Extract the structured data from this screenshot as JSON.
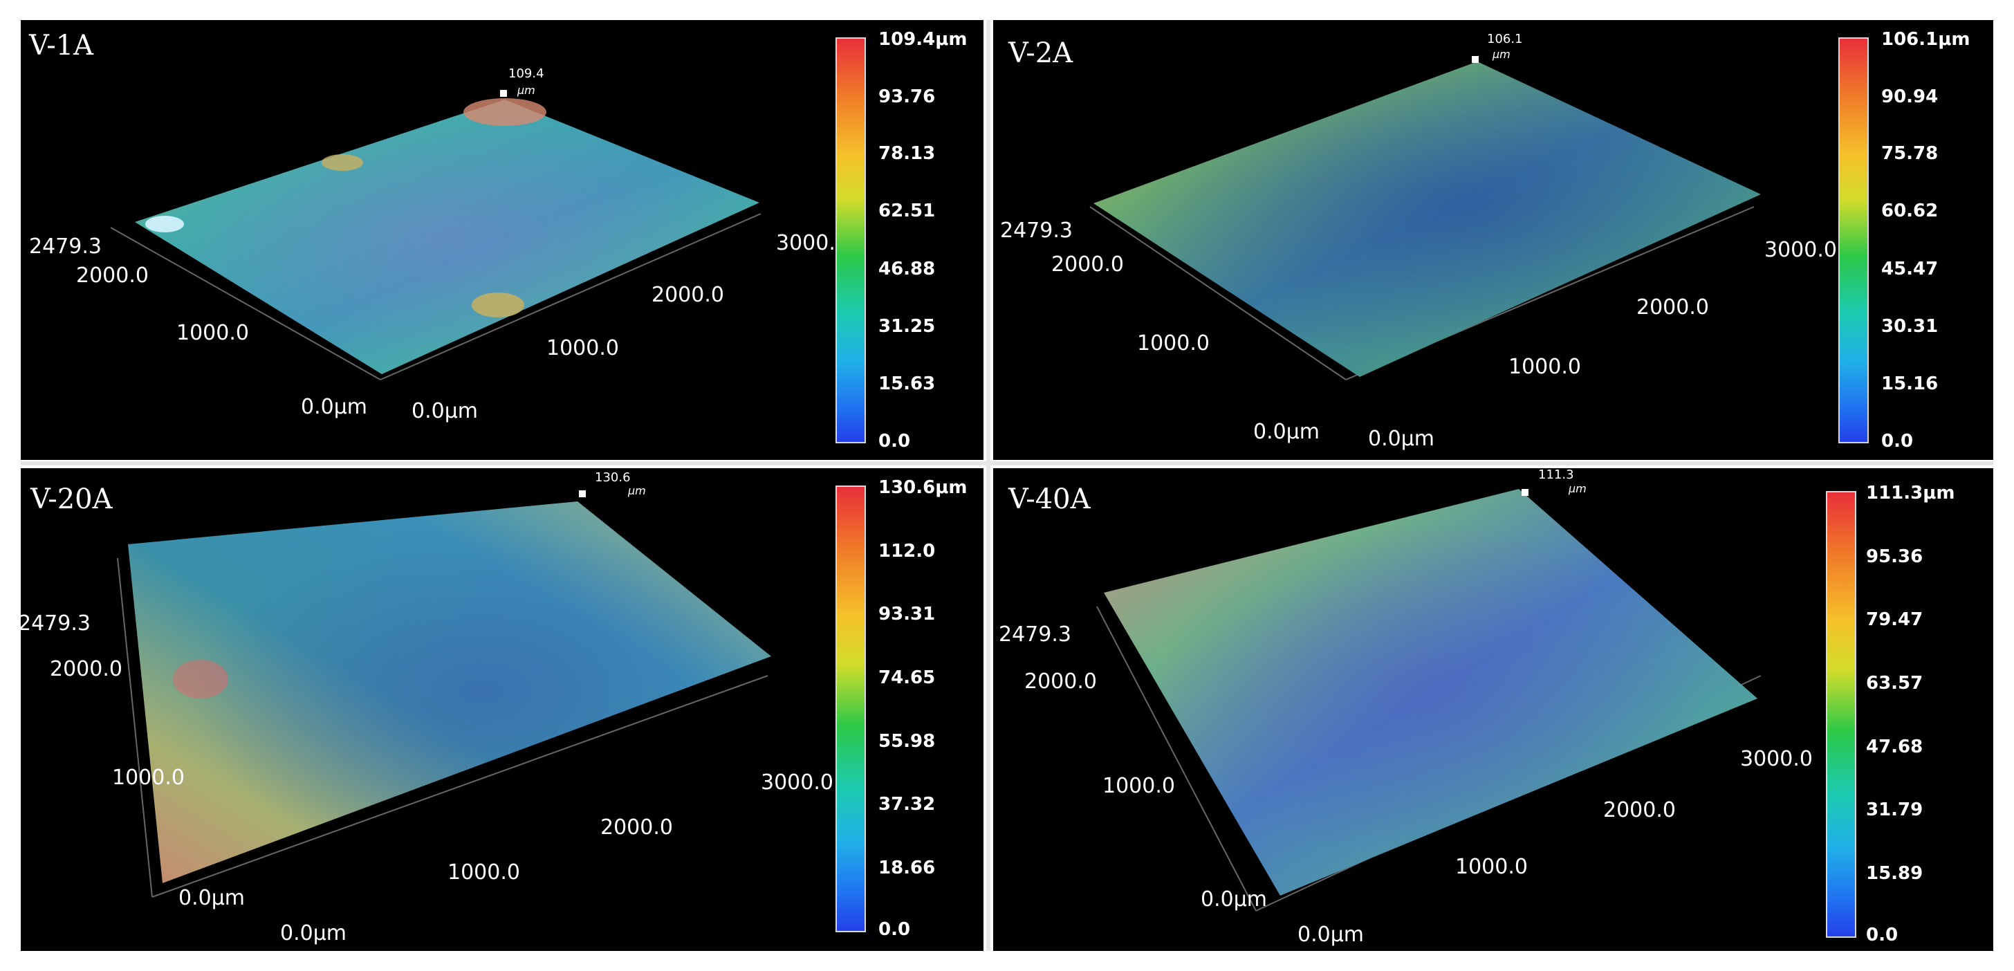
{
  "panels": [
    {
      "title": "V-1A",
      "peak_value": "109.4",
      "peak_unit": "μm",
      "colorbar_ticks": [
        "109.4μm",
        "93.76",
        "78.13",
        "62.51",
        "46.88",
        "31.25",
        "15.63",
        "0.0"
      ],
      "y_axis_labels": [
        "2479.3",
        "2000.0",
        "1000.0",
        "0.0μm"
      ],
      "x_axis_labels": [
        "0.0μm",
        "1000.0",
        "2000.0",
        "3000.0"
      ],
      "dominant_color": "#3aa6a0"
    },
    {
      "title": "V-2A",
      "peak_value": "106.1",
      "peak_unit": "μm",
      "colorbar_ticks": [
        "106.1μm",
        "90.94",
        "75.78",
        "60.62",
        "45.47",
        "30.31",
        "15.16",
        "0.0"
      ],
      "y_axis_labels": [
        "2479.3",
        "2000.0",
        "1000.0",
        "0.0μm"
      ],
      "x_axis_labels": [
        "0.0μm",
        "1000.0",
        "2000.0",
        "3000.0"
      ],
      "dominant_color": "#3a8a8c"
    },
    {
      "title": "V-20A",
      "peak_value": "130.6",
      "peak_unit": "μm",
      "colorbar_ticks": [
        "130.6μm",
        "112.0",
        "93.31",
        "74.65",
        "55.98",
        "37.32",
        "18.66",
        "0.0"
      ],
      "y_axis_labels": [
        "2479.3",
        "2000.0",
        "1000.0",
        "0.0μm"
      ],
      "x_axis_labels": [
        "0.0μm",
        "1000.0",
        "2000.0",
        "3000.0"
      ],
      "dominant_color": "#3a8ea8"
    },
    {
      "title": "V-40A",
      "peak_value": "111.3",
      "peak_unit": "μm",
      "colorbar_ticks": [
        "111.3μm",
        "95.36",
        "79.47",
        "63.57",
        "47.68",
        "31.79",
        "15.89",
        "0.0"
      ],
      "y_axis_labels": [
        "2479.3",
        "2000.0",
        "1000.0",
        "0.0μm"
      ],
      "x_axis_labels": [
        "0.0μm",
        "1000.0",
        "2000.0",
        "3000.0"
      ],
      "dominant_color": "#4a80c0"
    }
  ]
}
